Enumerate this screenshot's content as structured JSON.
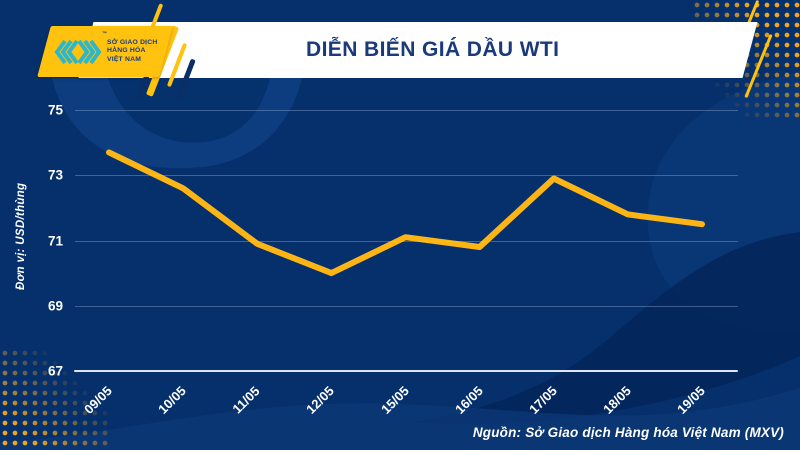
{
  "header": {
    "title": "DIỄN BIẾN GIÁ DẦU WTI",
    "logo": {
      "line1": "SỞ GIAO DỊCH",
      "line2": "HÀNG HÓA",
      "line3": "VIỆT NAM",
      "trademark": "™"
    }
  },
  "chart_data": {
    "type": "line",
    "title": "DIỄN BIẾN GIÁ DẦU WTI",
    "categories": [
      "09/05",
      "10/05",
      "11/05",
      "12/05",
      "15/05",
      "16/05",
      "17/05",
      "18/05",
      "19/05"
    ],
    "series": [
      {
        "name": "Giá dầu WTI",
        "values": [
          73.7,
          72.6,
          70.9,
          70.0,
          71.1,
          70.8,
          72.9,
          71.8,
          71.5
        ]
      }
    ],
    "ylabel": "Đơn vị: USD/thùng",
    "xlabel": "",
    "yticks": [
      67,
      69,
      71,
      73,
      75
    ],
    "ylim": [
      67,
      75
    ],
    "grid": "horizontal",
    "legend": "none"
  },
  "footer": {
    "source": "Nguồn: Sở Giao dịch Hàng hóa Việt Nam (MXV)"
  },
  "colors": {
    "background": "#05306C",
    "wave_light": "#0D3C7F",
    "wave_dark": "#032659",
    "line": "#FDB515",
    "accent_yellow": "#FFC20E",
    "dots_yellow": "#F2A51C",
    "title_navy": "#1A3A7C",
    "logo_teal": "#2EB6CA",
    "text_white": "#FFFFFF"
  }
}
